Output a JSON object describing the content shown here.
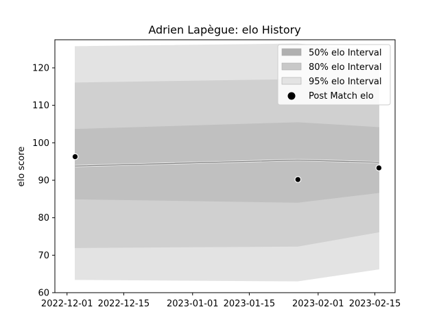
{
  "chart_data": {
    "type": "area",
    "title": "Adrien Lapègue: elo History",
    "xlabel": "",
    "ylabel": "elo score",
    "x_ticks": [
      "2022-12-01",
      "2022-12-15",
      "2023-01-01",
      "2023-01-15",
      "2023-02-01",
      "2023-02-15"
    ],
    "y_ticks": [
      60,
      70,
      80,
      90,
      100,
      110,
      120
    ],
    "ylim": [
      60,
      127.5
    ],
    "xlim": [
      "2022-11-28",
      "2023-02-20"
    ],
    "x": [
      "2022-12-03",
      "2023-01-27",
      "2023-02-16"
    ],
    "mean": [
      93.8,
      95.4,
      94.8
    ],
    "band_50": {
      "lower": [
        85.0,
        84.1,
        86.7
      ],
      "upper": [
        103.6,
        105.4,
        104.1
      ]
    },
    "band_80": {
      "lower": [
        72.0,
        72.4,
        76.2
      ],
      "upper": [
        116.0,
        116.9,
        114.9
      ]
    },
    "band_95": {
      "lower": [
        63.5,
        63.1,
        66.3
      ],
      "upper": [
        125.7,
        126.4,
        124.5
      ]
    },
    "points": [
      {
        "x": "2022-12-03",
        "y": 96.3
      },
      {
        "x": "2023-01-27",
        "y": 90.2
      },
      {
        "x": "2023-02-16",
        "y": 93.3
      }
    ],
    "legend_position": "top-right",
    "legend": [
      {
        "label": "50% elo Interval",
        "color": "#b0b0b0",
        "kind": "patch"
      },
      {
        "label": "80% elo Interval",
        "color": "#c8c8c8",
        "kind": "patch"
      },
      {
        "label": "95% elo Interval",
        "color": "#e3e3e3",
        "kind": "patch"
      },
      {
        "label": "Post Match elo",
        "color": "#000000",
        "kind": "marker"
      }
    ],
    "colors": {
      "band_95": "#e3e3e3",
      "band_80": "#d0d0d0",
      "band_50": "#c0c0c0",
      "mean_line": "#808080",
      "point": "#000000"
    }
  }
}
